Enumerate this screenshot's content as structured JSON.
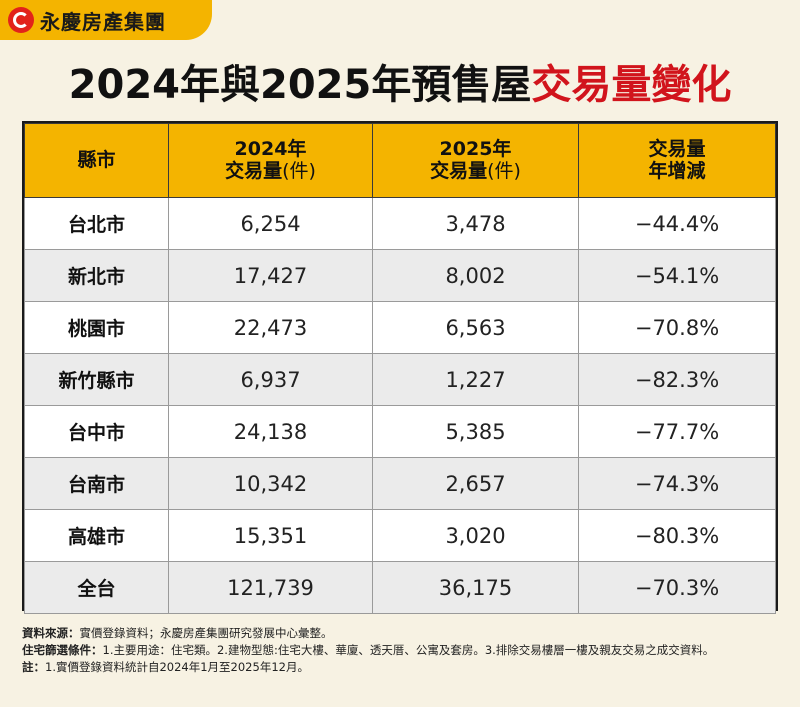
{
  "brand": {
    "name": "永慶房產集團"
  },
  "title": {
    "part1": "2024年與2025年",
    "part2": "預售屋",
    "part3": "交易量變化"
  },
  "table": {
    "headers": [
      {
        "line1": "縣市",
        "line2": "",
        "unit": ""
      },
      {
        "line1": "2024年",
        "line2": "交易量",
        "unit": "(件)"
      },
      {
        "line1": "2025年",
        "line2": "交易量",
        "unit": "(件)"
      },
      {
        "line1": "交易量",
        "line2": "年增減",
        "unit": ""
      }
    ]
  },
  "chart_data": {
    "type": "table",
    "columns": [
      "縣市",
      "2024年交易量(件)",
      "2025年交易量(件)",
      "交易量年增減"
    ],
    "rows": [
      [
        "台北市",
        "6,254",
        "3,478",
        "−44.4%"
      ],
      [
        "新北市",
        "17,427",
        "8,002",
        "−54.1%"
      ],
      [
        "桃園市",
        "22,473",
        "6,563",
        "−70.8%"
      ],
      [
        "新竹縣市",
        "6,937",
        "1,227",
        "−82.3%"
      ],
      [
        "台中市",
        "24,138",
        "5,385",
        "−77.7%"
      ],
      [
        "台南市",
        "10,342",
        "2,657",
        "−74.3%"
      ],
      [
        "高雄市",
        "15,351",
        "3,020",
        "−80.3%"
      ],
      [
        "全台",
        "121,739",
        "36,175",
        "−70.3%"
      ]
    ]
  },
  "notes": {
    "source_label": "資料來源：",
    "source_text": "實價登錄資料；永慶房產集團研究發展中心彙整。",
    "filter_label": "住宅篩選條件：",
    "filter_text": "1.主要用途：住宅類。2.建物型態:住宅大樓、華廈、透天厝、公寓及套房。3.排除交易樓層一樓及親友交易之成交資料。",
    "note_label": "註：",
    "note_text": "1.實價登錄資料統計自2024年1月至2025年12月。"
  },
  "colors": {
    "accent": "#f4b400",
    "highlight_red": "#d1141c",
    "row_alt": "#ebebeb"
  }
}
